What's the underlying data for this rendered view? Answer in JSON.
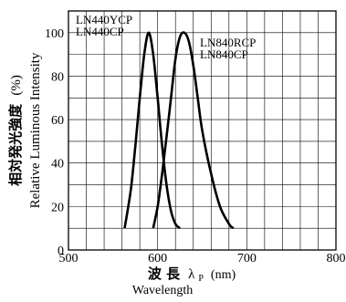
{
  "chart_data": {
    "type": "line",
    "title": "",
    "ylabel_jp": "相対発光強度",
    "ylabel_unit": "(%)",
    "ylabel_en": "Relative Luminous Intensity",
    "xlabel_jp": "波 長",
    "xlabel_symbol": "λ",
    "xlabel_sub": "P",
    "xlabel_unit": "(nm)",
    "xlabel_en": "Wavelength",
    "xlim": [
      500,
      800
    ],
    "ylim": [
      0,
      110
    ],
    "xticks": [
      "500",
      "600",
      "700",
      "800"
    ],
    "yticks": [
      "0",
      "20",
      "40",
      "60",
      "80",
      "100"
    ],
    "grid": true,
    "series": [
      {
        "label_lines": [
          "LN440YCP",
          "LN440CP"
        ],
        "color": "#000000",
        "x": [
          563,
          570,
          575,
          580,
          585,
          590,
          595,
          600,
          605,
          610,
          615,
          620,
          625
        ],
        "y": [
          10,
          28,
          48,
          70,
          90,
          100,
          90,
          70,
          48,
          30,
          18,
          12,
          10
        ]
      },
      {
        "label_lines": [
          "LN840RCP",
          "LN840CP"
        ],
        "color": "#000000",
        "x": [
          595,
          600,
          605,
          610,
          615,
          620,
          625,
          630,
          635,
          640,
          645,
          650,
          660,
          670,
          680,
          685
        ],
        "y": [
          10,
          20,
          35,
          52,
          70,
          88,
          98,
          100,
          96,
          85,
          70,
          55,
          35,
          20,
          12,
          10
        ]
      }
    ]
  }
}
